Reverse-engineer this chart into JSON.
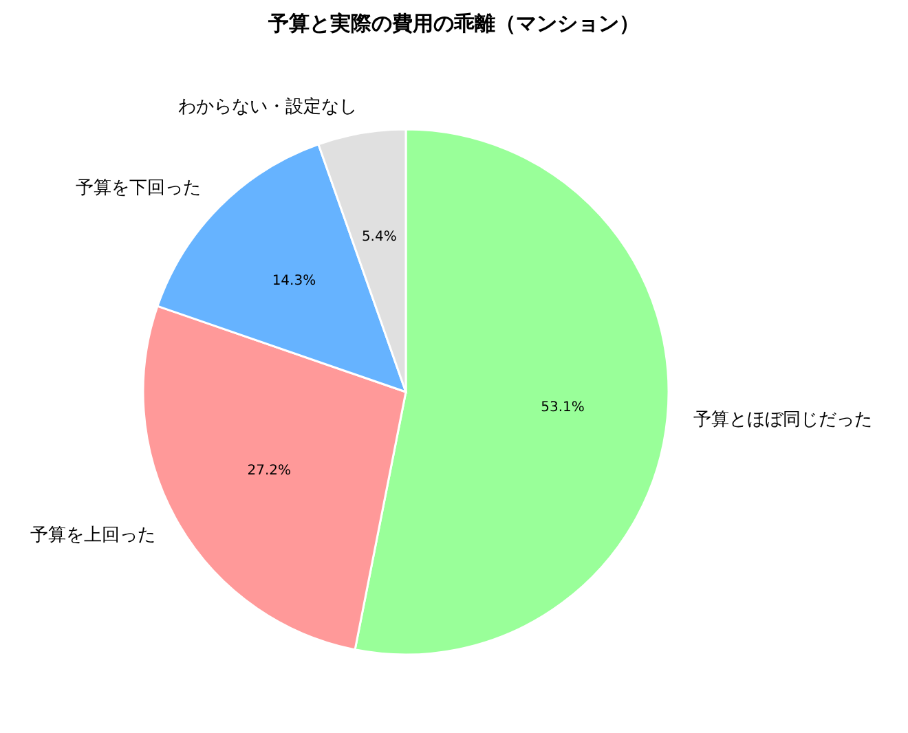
{
  "chart_data": {
    "type": "pie",
    "title": "予算と実際の費用の乖離（マンション）",
    "categories": [
      "予算とほぼ同じだった",
      "予算を上回った",
      "予算を下回った",
      "わからない・設定なし"
    ],
    "values": [
      53.1,
      27.2,
      14.3,
      5.4
    ],
    "colors": [
      "#99ff99",
      "#ff9999",
      "#66b3ff",
      "#e0e0e0"
    ],
    "value_labels": [
      "53.1%",
      "27.2%",
      "14.3%",
      "5.4%"
    ]
  }
}
